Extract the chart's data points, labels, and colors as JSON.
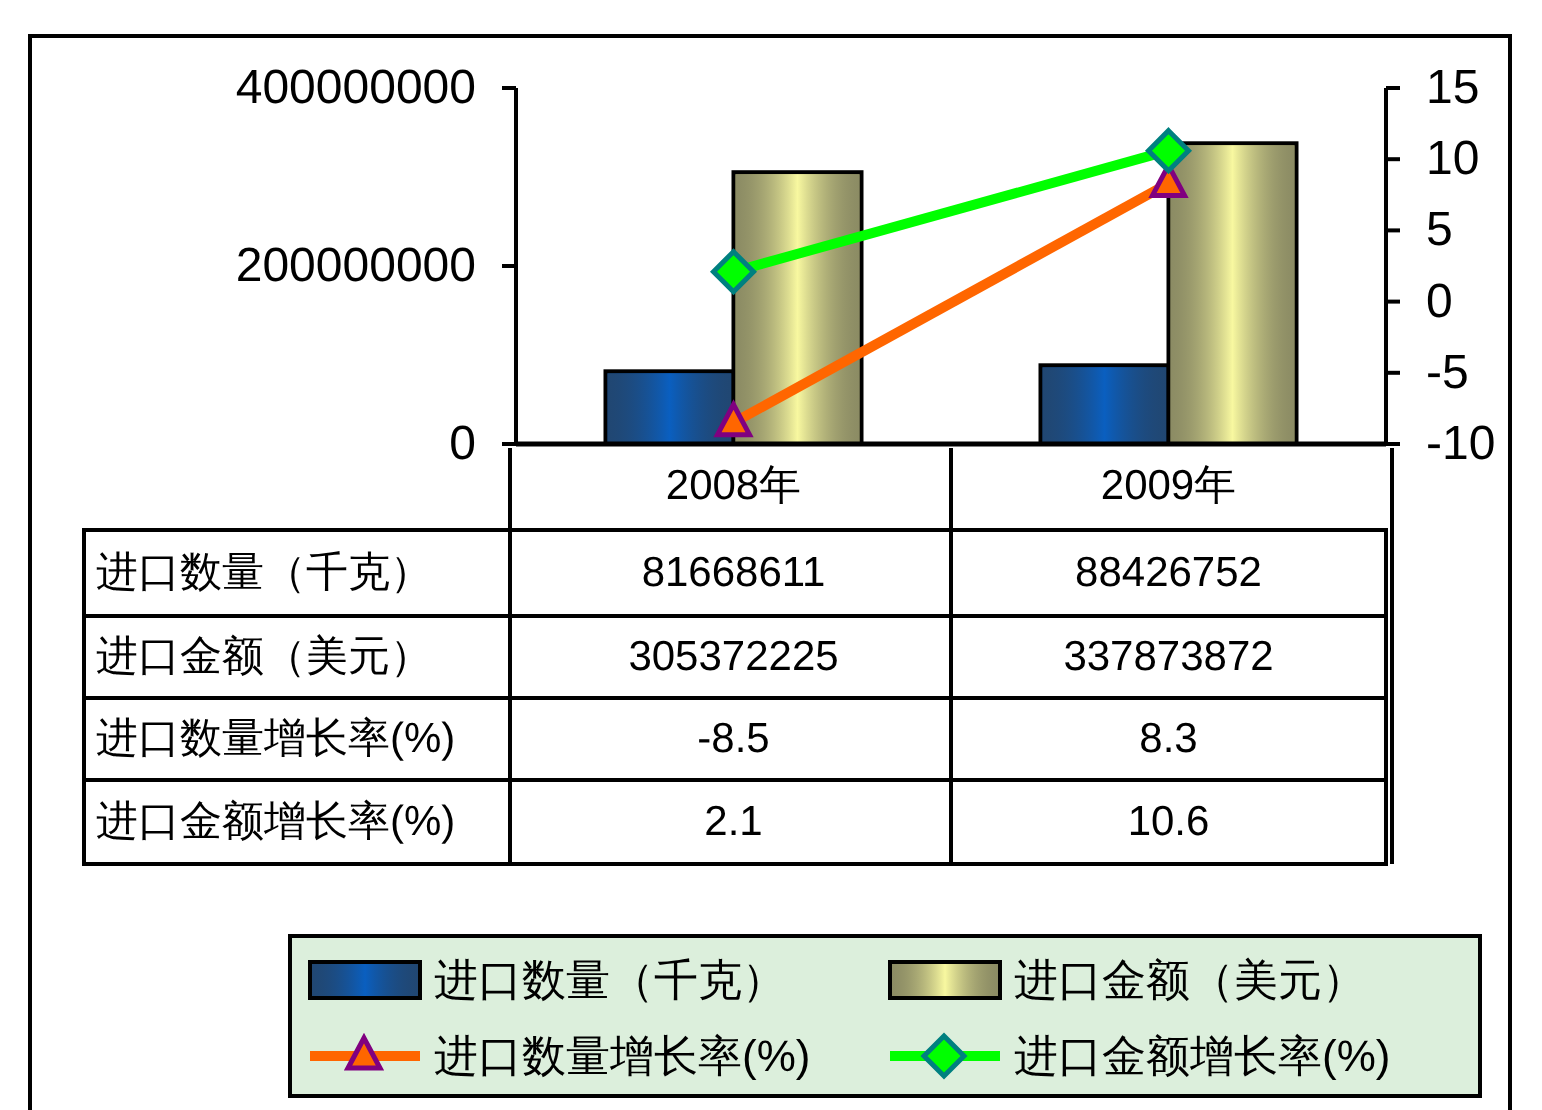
{
  "chart_data": {
    "type": "bar",
    "categories": [
      "2008年",
      "2009年"
    ],
    "series": [
      {
        "name": "进口数量（千克）",
        "color": "#0a5fc0",
        "values": [
          81668611,
          88426752
        ]
      },
      {
        "name": "进口金额（美元）",
        "color": "#f8f8a0",
        "values": [
          305372225,
          337873872
        ]
      },
      {
        "name": "进口数量增长率(%)",
        "type": "line",
        "axis": "y2",
        "color": "#ff6600",
        "marker": "triangle",
        "values": [
          -8.5,
          8.3
        ]
      },
      {
        "name": "进口金额增长率(%)",
        "type": "line",
        "axis": "y2",
        "color": "#00ff00",
        "marker": "diamond",
        "values": [
          2.1,
          10.6
        ]
      }
    ],
    "ylim": [
      0,
      400000000
    ],
    "yticks": [
      0,
      200000000,
      400000000
    ],
    "y2lim": [
      -10,
      15
    ],
    "y2ticks": [
      -10,
      -5,
      0,
      5,
      10,
      15
    ],
    "data_labels": true,
    "grid": false,
    "legend": "bottom"
  }
}
